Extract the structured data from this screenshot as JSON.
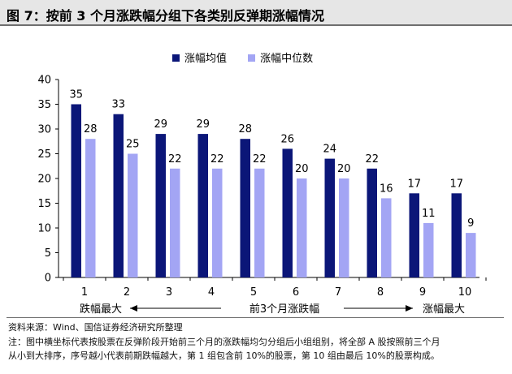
{
  "title": "图 7：按前 3 个月涨跌幅分组下各类别反弹期涨幅情况",
  "colors": {
    "mean": "#0b1678",
    "median": "#a3a5f4"
  },
  "chart_data": {
    "type": "bar",
    "categories": [
      "1",
      "2",
      "3",
      "4",
      "5",
      "6",
      "7",
      "8",
      "9",
      "10"
    ],
    "series": [
      {
        "name": "涨幅均值",
        "values": [
          35,
          33,
          29,
          29,
          28,
          26,
          24,
          22,
          17,
          17
        ]
      },
      {
        "name": "涨幅中位数",
        "values": [
          28,
          25,
          22,
          22,
          22,
          20,
          20,
          16,
          11,
          9
        ]
      }
    ],
    "yticks": [
      "0",
      "5",
      "10",
      "15",
      "20",
      "25",
      "30",
      "35",
      "40"
    ],
    "ylim": [
      0,
      40
    ],
    "legend_position": "top",
    "grid": false,
    "axis_annotation": {
      "left": "跌幅最大",
      "center": "前3个月涨跌幅",
      "right": "涨幅最大"
    }
  },
  "source": "资料来源：Wind、国信证券经济研究所整理",
  "note_line1": "注：图中横坐标代表按股票在反弹阶段开始前三个月的涨跌幅均匀分组后小组组别，将全部 A 股按照前三个月",
  "note_line2": "从小到大排序，序号越小代表前期跌幅越大，第 1 组包含前 10%的股票，第 10 组由最后 10%的股票构成。"
}
